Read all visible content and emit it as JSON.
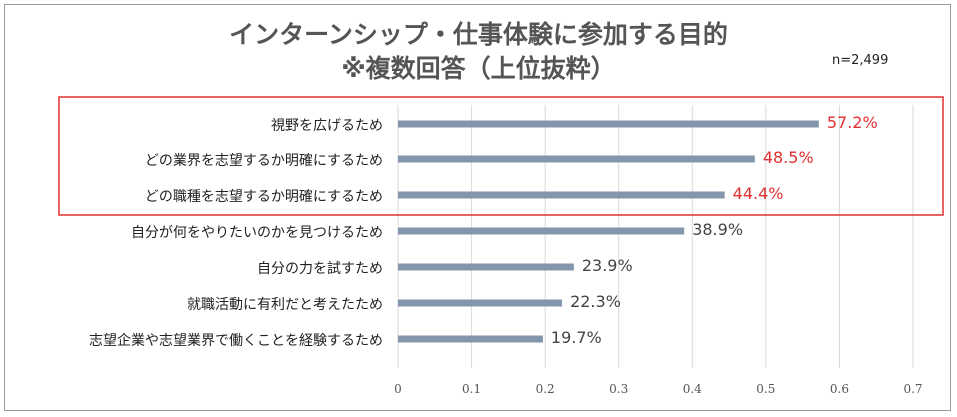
{
  "title": "インターンシップ・仕事体験に参加する目的\n※複数回答（上位抜粋）",
  "sample_size": "n=2,499",
  "colors": {
    "bar": "#8496AB",
    "highlight": "#E03030",
    "value_default": "#444444",
    "grid": "#D9D9D9"
  },
  "chart_data": {
    "type": "bar",
    "orientation": "horizontal",
    "categories": [
      "視野を広げるため",
      "どの業界を志望するか明確にするため",
      "どの職種を志望するか明確にするため",
      "自分が何をやりたいのかを見つけるため",
      "自分の力を試すため",
      "就職活動に有利だと考えたため",
      "志望企業や志望業界で働くことを経験するため"
    ],
    "values": [
      0.572,
      0.485,
      0.444,
      0.389,
      0.239,
      0.223,
      0.197
    ],
    "value_labels": [
      "57.2%",
      "48.5%",
      "44.4%",
      "38.9%",
      "23.9%",
      "22.3%",
      "19.7%"
    ],
    "highlighted": [
      true,
      true,
      true,
      false,
      false,
      false,
      false
    ],
    "xlim": [
      0,
      0.7
    ],
    "xticks": [
      "0",
      "0.1",
      "0.2",
      "0.3",
      "0.4",
      "0.5",
      "0.6",
      "0.7"
    ],
    "grid": "vertical",
    "title": "インターンシップ・仕事体験に参加する目的\n※複数回答（上位抜粋）"
  }
}
